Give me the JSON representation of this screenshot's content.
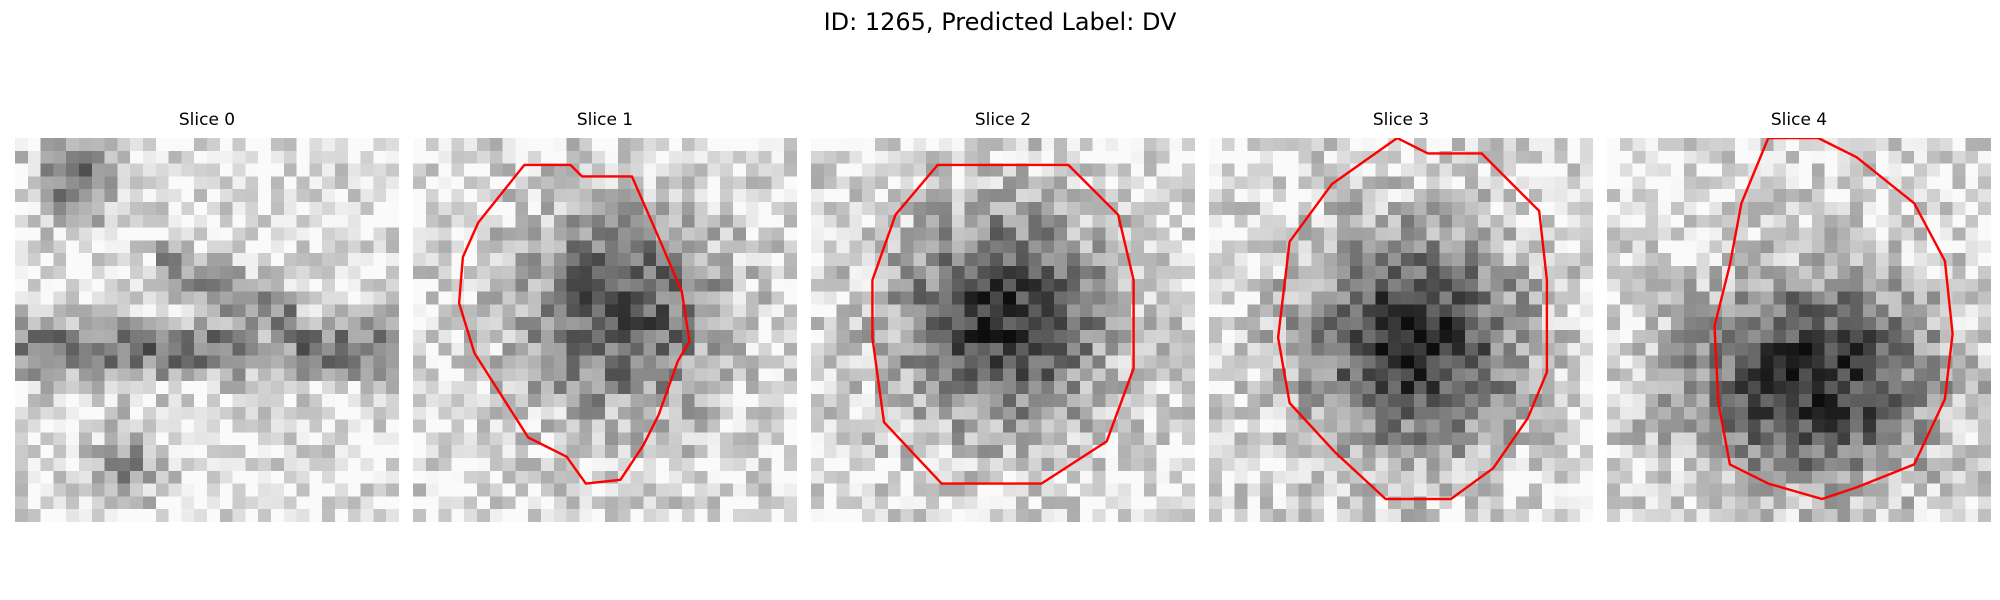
{
  "figure": {
    "title": "ID: 1265, Predicted Label: DV"
  },
  "slices": [
    {
      "label": "Slice 0",
      "seed": 11,
      "blob": [
        0.43,
        0.56,
        0.36,
        0.26,
        0.38
      ],
      "contour": null,
      "colormap": "gray-reversed"
    },
    {
      "label": "Slice 1",
      "seed": 27,
      "blob": [
        0.54,
        0.45,
        0.34,
        0.34,
        0.55
      ],
      "contour": [
        [
          0.29,
          0.07
        ],
        [
          0.41,
          0.07
        ],
        [
          0.44,
          0.1
        ],
        [
          0.57,
          0.1
        ],
        [
          0.64,
          0.26
        ],
        [
          0.7,
          0.4
        ],
        [
          0.72,
          0.53
        ],
        [
          0.69,
          0.58
        ],
        [
          0.64,
          0.72
        ],
        [
          0.6,
          0.8
        ],
        [
          0.54,
          0.89
        ],
        [
          0.45,
          0.9
        ],
        [
          0.4,
          0.83
        ],
        [
          0.3,
          0.78
        ],
        [
          0.16,
          0.56
        ],
        [
          0.12,
          0.43
        ],
        [
          0.13,
          0.31
        ],
        [
          0.17,
          0.22
        ]
      ],
      "colormap": "gray-reversed"
    },
    {
      "label": "Slice 2",
      "seed": 43,
      "blob": [
        0.5,
        0.47,
        0.35,
        0.35,
        0.67
      ],
      "contour": [
        [
          0.33,
          0.07
        ],
        [
          0.67,
          0.07
        ],
        [
          0.8,
          0.2
        ],
        [
          0.84,
          0.37
        ],
        [
          0.84,
          0.6
        ],
        [
          0.77,
          0.79
        ],
        [
          0.6,
          0.9
        ],
        [
          0.34,
          0.9
        ],
        [
          0.19,
          0.74
        ],
        [
          0.16,
          0.52
        ],
        [
          0.16,
          0.37
        ],
        [
          0.22,
          0.2
        ]
      ],
      "colormap": "gray-reversed"
    },
    {
      "label": "Slice 3",
      "seed": 59,
      "blob": [
        0.53,
        0.53,
        0.36,
        0.36,
        0.72
      ],
      "contour": [
        [
          0.49,
          0.0
        ],
        [
          0.57,
          0.04
        ],
        [
          0.71,
          0.04
        ],
        [
          0.86,
          0.19
        ],
        [
          0.88,
          0.37
        ],
        [
          0.88,
          0.61
        ],
        [
          0.83,
          0.73
        ],
        [
          0.74,
          0.86
        ],
        [
          0.63,
          0.94
        ],
        [
          0.46,
          0.94
        ],
        [
          0.33,
          0.82
        ],
        [
          0.21,
          0.69
        ],
        [
          0.18,
          0.52
        ],
        [
          0.21,
          0.27
        ],
        [
          0.32,
          0.12
        ]
      ],
      "colormap": "gray-reversed"
    },
    {
      "label": "Slice 4",
      "seed": 71,
      "blob": [
        0.53,
        0.63,
        0.41,
        0.33,
        0.72
      ],
      "contour": [
        [
          0.42,
          0.0
        ],
        [
          0.55,
          0.0
        ],
        [
          0.65,
          0.05
        ],
        [
          0.8,
          0.17
        ],
        [
          0.88,
          0.32
        ],
        [
          0.9,
          0.51
        ],
        [
          0.88,
          0.68
        ],
        [
          0.8,
          0.85
        ],
        [
          0.65,
          0.91
        ],
        [
          0.56,
          0.94
        ],
        [
          0.42,
          0.9
        ],
        [
          0.32,
          0.85
        ],
        [
          0.29,
          0.69
        ],
        [
          0.28,
          0.49
        ],
        [
          0.32,
          0.33
        ],
        [
          0.35,
          0.17
        ]
      ],
      "colormap": "gray-reversed"
    }
  ],
  "colors": {
    "contour": "#ff0000",
    "background": "#ffffff"
  }
}
